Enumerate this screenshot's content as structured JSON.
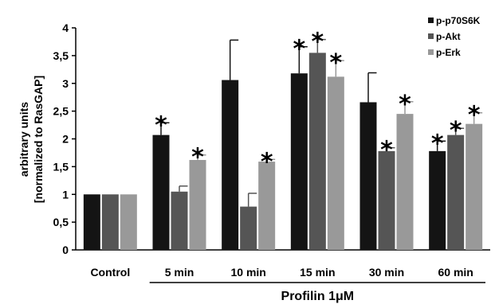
{
  "chart_data": {
    "type": "bar",
    "ylabel_line1": "arbitrary units",
    "ylabel_line2": "[normalized to RasGAP]",
    "xlabel": "Profilin 1μM",
    "ylim": [
      0,
      4
    ],
    "yticks": [
      "0",
      "0,5",
      "1",
      "1,5",
      "2",
      "2,5",
      "3",
      "3,5",
      "4"
    ],
    "categories": [
      "Control",
      "5 min",
      "10 min",
      "15 min",
      "30 min",
      "60 min"
    ],
    "grid": false,
    "legend_position": "top-right",
    "series": [
      {
        "name": "p-p70S6K",
        "color": "#141414",
        "values": [
          1.0,
          2.07,
          3.06,
          3.18,
          2.66,
          1.78
        ],
        "errors": [
          0.01,
          0.22,
          0.72,
          0.48,
          0.53,
          0.18
        ],
        "significant": [
          false,
          true,
          false,
          true,
          false,
          true
        ]
      },
      {
        "name": "p-Akt",
        "color": "#555555",
        "values": [
          1.0,
          1.05,
          0.78,
          3.55,
          1.78,
          2.07
        ],
        "errors": [
          0.01,
          0.1,
          0.24,
          0.24,
          0.06,
          0.12
        ],
        "significant": [
          false,
          false,
          false,
          true,
          true,
          true
        ]
      },
      {
        "name": "p-Erk",
        "color": "#999999",
        "values": [
          1.0,
          1.62,
          1.59,
          3.12,
          2.45,
          2.27
        ],
        "errors": [
          0.01,
          0.09,
          0.04,
          0.29,
          0.22,
          0.2
        ],
        "significant": [
          false,
          true,
          true,
          true,
          true,
          true
        ]
      }
    ],
    "significance_marker": "*"
  }
}
